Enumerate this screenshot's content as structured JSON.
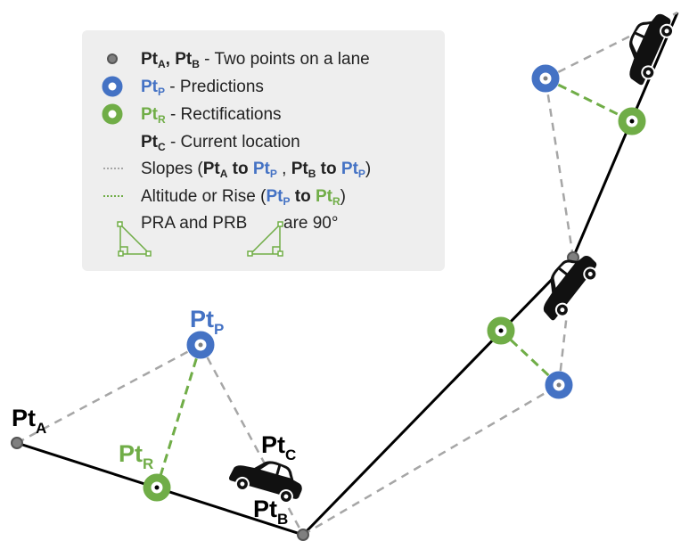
{
  "colors": {
    "prediction": "#4472C4",
    "rectification": "#70AD47",
    "lane_point": "#7f7f7f",
    "slope_line": "#a6a6a6",
    "legend_bg": "#eeeeee"
  },
  "legend": {
    "lane_points": {
      "pa": "Pt",
      "pa_sub": "A",
      "sep": ", ",
      "pb": "Pt",
      "pb_sub": "B",
      "desc": " - Two points on a lane"
    },
    "predictions": {
      "p": "Pt",
      "p_sub": "P",
      "desc": " - Predictions"
    },
    "rectifications": {
      "r": "Pt",
      "r_sub": "R",
      "desc": " - Rectifications"
    },
    "current": {
      "c": "Pt",
      "c_sub": "C",
      "desc": " - Current location"
    },
    "slopes": {
      "t1": "Slopes (",
      "pa": "Pt",
      "pa_sub": "A",
      "to1": " to ",
      "pp1": "Pt",
      "pp1_sub": "P",
      "mid": " , ",
      "pb": "Pt",
      "pb_sub": "B",
      "to2": " to ",
      "pp2": "Pt",
      "pp2_sub": "P",
      "end": ")"
    },
    "altitude": {
      "t1": "Altitude or Rise (",
      "pp": "Pt",
      "pp_sub": "P",
      "to": " to ",
      "pr": "Pt",
      "pr_sub": "R",
      "end": ")"
    },
    "angles": {
      "t1": "PRA and PRB",
      "t2": "are 90°"
    }
  },
  "labels": {
    "pt_a": {
      "main": "Pt",
      "sub": "A"
    },
    "pt_b": {
      "main": "Pt",
      "sub": "B"
    },
    "pt_c": {
      "main": "Pt",
      "sub": "C"
    },
    "pt_p": {
      "main": "Pt",
      "sub": "P"
    },
    "pt_r": {
      "main": "Pt",
      "sub": "R"
    }
  },
  "icons": [
    "car-icon",
    "right-triangle-icon"
  ]
}
